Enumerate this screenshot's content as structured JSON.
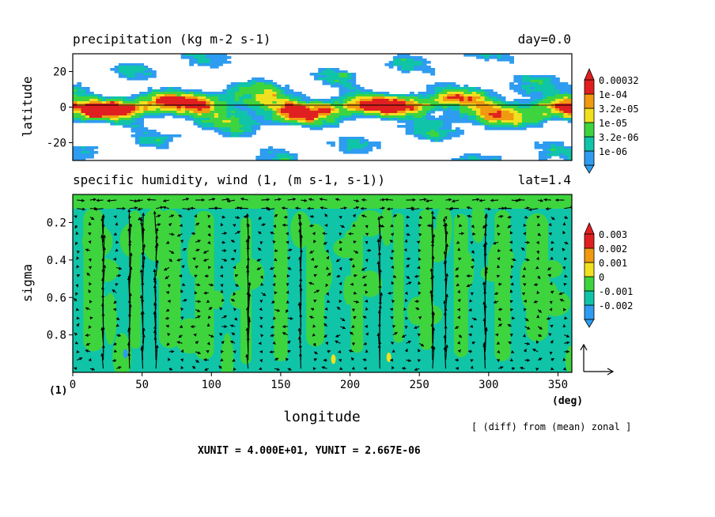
{
  "chart_data": [
    {
      "type": "heatmap",
      "title": "precipitation (kg m-2 s-1)",
      "time_label": "day=0.0",
      "ylabel": "latitude",
      "xlim": [
        0,
        360
      ],
      "ylim": [
        -30,
        30
      ],
      "y_ticks": [
        "20",
        "0",
        "-20"
      ],
      "y_tick_values": [
        20,
        0,
        -20
      ],
      "colorbar": {
        "labels": [
          "0.00032",
          "1e-04",
          "3.2e-05",
          "1e-05",
          "3.2e-06",
          "1e-06"
        ],
        "colors": [
          "#2e9cf0",
          "#10c4a8",
          "#3ed43e",
          "#f0e020",
          "#f09a10",
          "#e02020"
        ]
      }
    },
    {
      "type": "heatmap",
      "title": "specific humidity, wind (1, (m s-1, s-1))",
      "lat_label": "lat=1.4",
      "xlabel": "longitude",
      "ylabel": "sigma",
      "xlim": [
        0,
        360
      ],
      "ylim": [
        1.0,
        0.05
      ],
      "x_ticks": [
        "0",
        "50",
        "100",
        "150",
        "200",
        "250",
        "300",
        "350"
      ],
      "x_tick_values": [
        0,
        50,
        100,
        150,
        200,
        250,
        300,
        350
      ],
      "x_unit": "(deg)",
      "y_unit": "(1)",
      "y_ticks": [
        "0.2",
        "0.4",
        "0.6",
        "0.8"
      ],
      "y_tick_values": [
        0.2,
        0.4,
        0.6,
        0.8
      ],
      "colorbar": {
        "labels": [
          "0.003",
          "0.002",
          "0.001",
          "0",
          "-0.001",
          "-0.002"
        ],
        "colors": [
          "#2e9cf0",
          "#10c4a8",
          "#3ed43e",
          "#f0e020",
          "#f09a10",
          "#e02020"
        ]
      },
      "background_colors": {
        "base": "#10c4a8",
        "positive": "#3ed43e"
      }
    }
  ],
  "annotations": {
    "diff_note": "[ (diff) from (mean) zonal ]",
    "units": "XUNIT = 4.000E+01, YUNIT = 2.667E-06"
  }
}
